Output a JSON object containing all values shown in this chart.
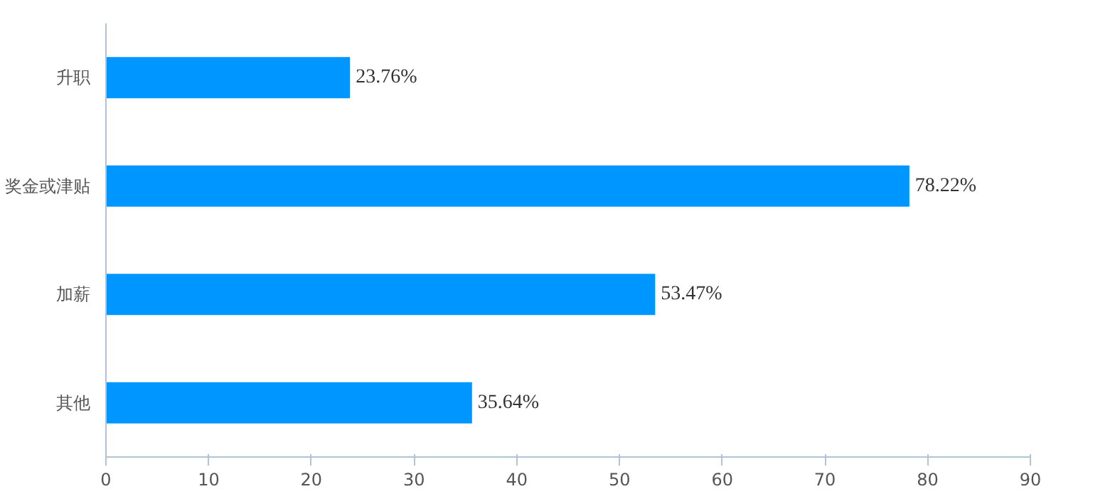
{
  "chart_data": {
    "type": "bar",
    "orientation": "horizontal",
    "categories": [
      "升职",
      "奖金或津贴",
      "加薪",
      "其他"
    ],
    "values": [
      23.76,
      78.22,
      53.47,
      35.64
    ],
    "value_labels": [
      "23.76%",
      "78.22%",
      "53.47%",
      "35.64%"
    ],
    "color": "#0096ff",
    "xlim": [
      0,
      90
    ],
    "xticks": [
      0,
      10,
      20,
      30,
      40,
      50,
      60,
      70,
      80,
      90
    ],
    "grid": false
  }
}
